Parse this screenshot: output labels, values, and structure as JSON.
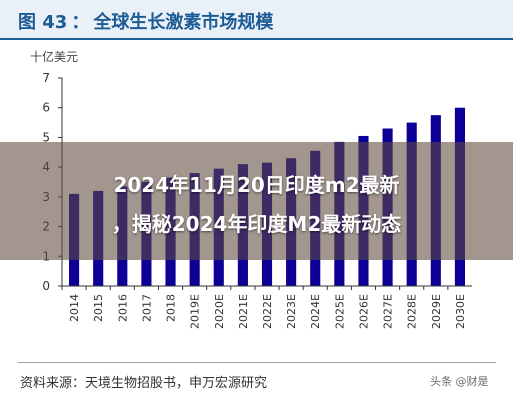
{
  "figure": {
    "label": "图 43",
    "separator": "：",
    "title": "全球生长激素市场规模",
    "accent_color": "#1d5b95",
    "header_bg": "#eaf0f8"
  },
  "overlay": {
    "line1": "2024年11月20日印度m2最新",
    "line2": "，揭秘2024年印度M2最新动态"
  },
  "source": "资料来源：天境生物招股书，申万宏源研究",
  "watermark": "头条 @财是",
  "chart_data": {
    "type": "bar",
    "unit_label": "十亿美元",
    "categories": [
      "2014",
      "2015",
      "2016",
      "2017",
      "2018",
      "2019E",
      "2020E",
      "2021E",
      "2022E",
      "2023E",
      "2024E",
      "2025E",
      "2026E",
      "2027E",
      "2028E",
      "2029E",
      "2030E"
    ],
    "values": [
      3.1,
      3.2,
      3.35,
      3.5,
      3.65,
      3.8,
      3.95,
      4.1,
      4.15,
      4.3,
      4.55,
      4.85,
      5.05,
      5.3,
      5.5,
      5.75,
      6.0
    ],
    "ylim": [
      0,
      7
    ],
    "yticks": [
      0,
      1,
      2,
      3,
      4,
      5,
      6,
      7
    ],
    "bar_color": "#0d0096",
    "grid": false
  }
}
